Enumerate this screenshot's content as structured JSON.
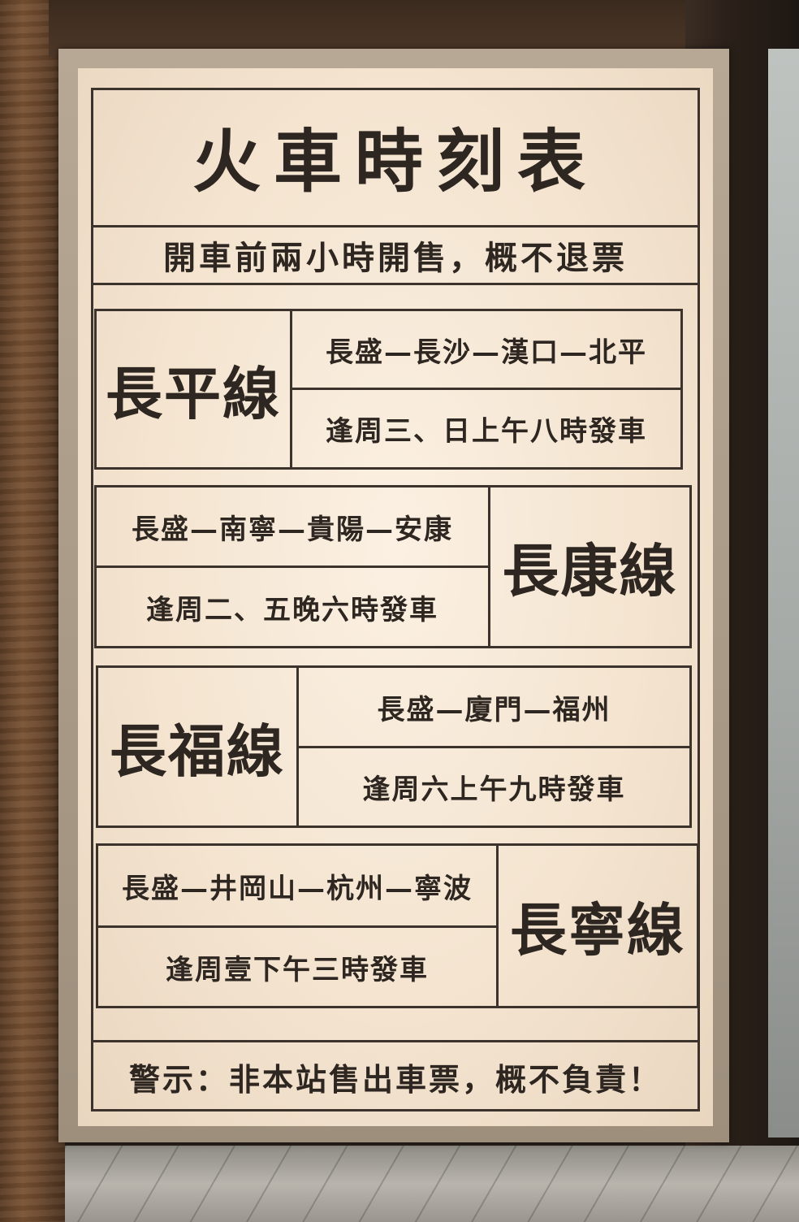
{
  "title": "火車時刻表",
  "subtitle": "開車前兩小時開售，概不退票",
  "lines": [
    {
      "name": "長平線",
      "route": "長盛—長沙—漢口—北平",
      "schedule": "逢周三、日上午八時發車"
    },
    {
      "name": "長康線",
      "route": "長盛—南寧—貴陽—安康",
      "schedule": "逢周二、五晚六時發車"
    },
    {
      "name": "長福線",
      "route": "長盛—廈門—福州",
      "schedule": "逢周六上午九時發車"
    },
    {
      "name": "長寧線",
      "route": "長盛—井岡山—杭州—寧波",
      "schedule": "逢周壹下午三時發車"
    }
  ],
  "warning": "警示：非本站售出車票，概不負責！"
}
